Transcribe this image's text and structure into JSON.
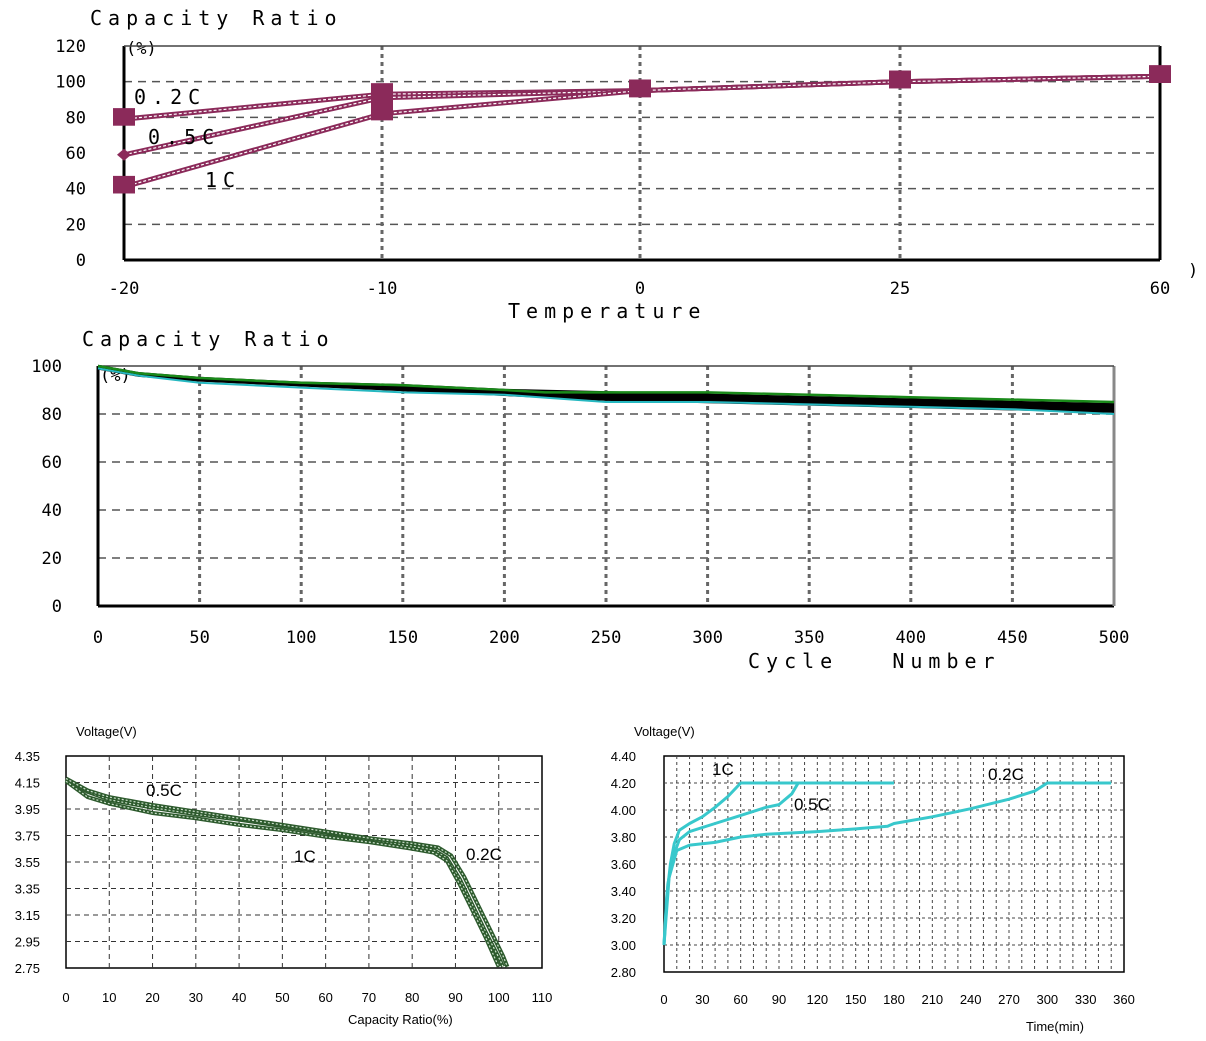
{
  "chart_data": [
    {
      "type": "line",
      "title": "Capacity Ratio",
      "yunit": "(%)",
      "xlabel": "Temperature",
      "xunit": ")",
      "x_ticks": [
        "-20",
        "-10",
        "0",
        "25",
        "60"
      ],
      "y_ticks": [
        "0",
        "20",
        "40",
        "60",
        "80",
        "100",
        "120"
      ],
      "ylim": [
        0,
        120
      ],
      "grid": true,
      "series": [
        {
          "name": "0.2C",
          "x": [
            -20,
            -10,
            0,
            25,
            60
          ],
          "y": [
            79,
            93,
            95,
            100,
            103
          ],
          "color": "#8b2a5a"
        },
        {
          "name": "0.5C",
          "x": [
            -20,
            -10,
            0,
            25,
            60
          ],
          "y": [
            59,
            91,
            95,
            100,
            103
          ],
          "color": "#8b2a5a"
        },
        {
          "name": "1C",
          "x": [
            -20,
            -10,
            0,
            25,
            60
          ],
          "y": [
            41,
            82,
            95,
            100,
            103
          ],
          "color": "#8b2a5a"
        }
      ]
    },
    {
      "type": "line",
      "title": "Capacity Ratio",
      "yunit": "(%)",
      "xlabel": "Cycle   Number",
      "x_ticks": [
        "0",
        "50",
        "100",
        "150",
        "200",
        "250",
        "300",
        "350",
        "400",
        "450",
        "500"
      ],
      "y_ticks": [
        "0",
        "20",
        "40",
        "60",
        "80",
        "100"
      ],
      "xlim": [
        0,
        500
      ],
      "ylim": [
        0,
        100
      ],
      "grid": true,
      "series": [
        {
          "x": [
            0,
            20,
            50,
            100,
            150,
            200,
            250,
            300,
            350,
            400,
            450,
            500
          ],
          "y": [
            100,
            97,
            95,
            93,
            92,
            90,
            89,
            88,
            87,
            86,
            85,
            84
          ],
          "color": "#000000"
        },
        {
          "x": [
            0,
            20,
            50,
            100,
            150,
            200,
            250,
            300,
            350,
            400,
            450,
            500
          ],
          "y": [
            99,
            96,
            94,
            92,
            90,
            88,
            86,
            85,
            84,
            83,
            82,
            81
          ],
          "color": "#000000"
        },
        {
          "x": [
            0,
            20,
            50,
            100,
            150,
            200,
            250,
            300,
            350,
            400,
            450,
            500
          ],
          "y": [
            99,
            96,
            93,
            91,
            89,
            88,
            85,
            85,
            84,
            83,
            82,
            80
          ],
          "color": "#26b8c0"
        },
        {
          "x": [
            0,
            20,
            50,
            100,
            150,
            200,
            220,
            300,
            350,
            400,
            450,
            500
          ],
          "y": [
            100,
            97,
            95,
            93,
            92,
            90,
            89,
            89,
            88,
            87,
            86,
            85
          ],
          "color": "#1a8a1a"
        }
      ]
    },
    {
      "type": "line",
      "ylabel": "Voltage(V)",
      "xlabel": "Capacity Ratio(%)",
      "x_ticks": [
        "0",
        "10",
        "20",
        "30",
        "40",
        "50",
        "60",
        "70",
        "80",
        "90",
        "100",
        "110"
      ],
      "y_ticks": [
        "4.35",
        "4.15",
        "3.95",
        "3.75",
        "3.55",
        "3.35",
        "3.15",
        "2.95",
        "2.75"
      ],
      "xlim": [
        0,
        110
      ],
      "ylim": [
        2.75,
        4.35
      ],
      "grid": true,
      "series": [
        {
          "name": "0.5C",
          "x": [
            0,
            5,
            10,
            20,
            30,
            40,
            50,
            60,
            70,
            80,
            85,
            88,
            91,
            94,
            97,
            100,
            101
          ],
          "y": [
            4.17,
            4.08,
            4.02,
            3.96,
            3.91,
            3.87,
            3.82,
            3.77,
            3.72,
            3.67,
            3.64,
            3.58,
            3.42,
            3.22,
            3.02,
            2.83,
            2.76
          ],
          "color": "#2d5a2d"
        },
        {
          "name": "1C",
          "x": [
            0,
            5,
            10,
            20,
            30,
            40,
            50,
            60,
            70,
            80,
            85,
            88,
            91,
            94,
            97,
            100
          ],
          "y": [
            4.16,
            4.04,
            3.99,
            3.92,
            3.88,
            3.83,
            3.79,
            3.74,
            3.7,
            3.65,
            3.62,
            3.56,
            3.38,
            3.18,
            2.98,
            2.76
          ],
          "color": "#2d5a2d"
        },
        {
          "name": "0.2C",
          "x": [
            0,
            5,
            10,
            20,
            30,
            40,
            50,
            60,
            70,
            80,
            86,
            89,
            92,
            95,
            98,
            101,
            102
          ],
          "y": [
            4.18,
            4.09,
            4.04,
            3.98,
            3.93,
            3.88,
            3.83,
            3.78,
            3.73,
            3.69,
            3.66,
            3.6,
            3.44,
            3.24,
            3.04,
            2.84,
            2.76
          ],
          "color": "#2d5a2d"
        }
      ]
    },
    {
      "type": "line",
      "ylabel": "Voltage(V)",
      "xlabel": "Time(min)",
      "x_ticks": [
        "0",
        "30",
        "60",
        "90",
        "120",
        "150",
        "180",
        "210",
        "240",
        "270",
        "300",
        "330",
        "360"
      ],
      "y_ticks": [
        "4.40",
        "4.20",
        "4.00",
        "3.80",
        "3.60",
        "3.40",
        "3.20",
        "3.00",
        "2.80"
      ],
      "xlim": [
        0,
        360
      ],
      "ylim": [
        2.8,
        4.4
      ],
      "grid": true,
      "series": [
        {
          "name": "1C",
          "x": [
            0,
            2,
            5,
            8,
            12,
            20,
            30,
            40,
            50,
            60,
            65,
            100,
            180
          ],
          "y": [
            3.0,
            3.35,
            3.6,
            3.75,
            3.85,
            3.9,
            3.95,
            4.02,
            4.1,
            4.2,
            4.2,
            4.2,
            4.2
          ],
          "color": "#38c8cc"
        },
        {
          "name": "0.5C",
          "x": [
            0,
            3,
            7,
            12,
            20,
            40,
            60,
            80,
            90,
            100,
            105,
            110,
            180
          ],
          "y": [
            3.0,
            3.45,
            3.65,
            3.78,
            3.84,
            3.9,
            3.96,
            4.02,
            4.04,
            4.12,
            4.2,
            4.2,
            4.2
          ],
          "color": "#38c8cc"
        },
        {
          "name": "0.2C",
          "x": [
            0,
            4,
            10,
            20,
            40,
            60,
            80,
            120,
            150,
            175,
            180,
            210,
            240,
            270,
            290,
            300,
            350
          ],
          "y": [
            3.0,
            3.5,
            3.7,
            3.74,
            3.76,
            3.8,
            3.82,
            3.84,
            3.86,
            3.88,
            3.9,
            3.95,
            4.01,
            4.08,
            4.14,
            4.2,
            4.2
          ],
          "color": "#38c8cc"
        }
      ]
    }
  ]
}
